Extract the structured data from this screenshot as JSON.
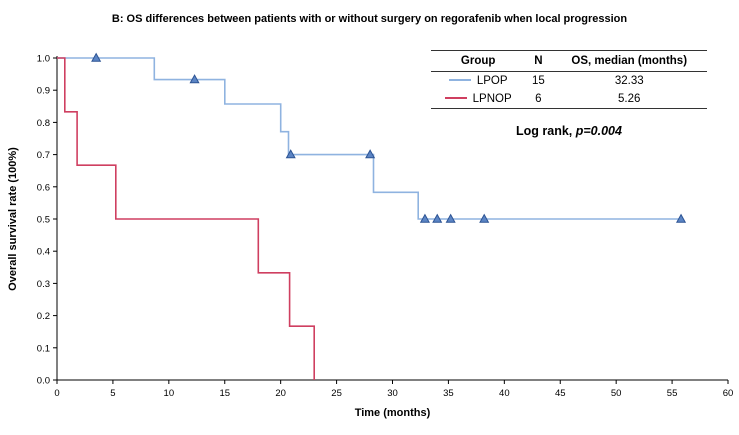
{
  "chart_data": {
    "type": "line",
    "chart_kind": "kaplan-meier-step",
    "title": "B: OS differences between patients with or without surgery on regorafenib when local progression",
    "xlabel": "Time (months)",
    "ylabel": "Overall survival rate (100%)",
    "xlim": [
      0,
      60
    ],
    "ylim": [
      0.0,
      1.0
    ],
    "xticks": [
      0,
      5,
      10,
      15,
      20,
      25,
      30,
      35,
      40,
      45,
      50,
      55,
      60
    ],
    "yticks": [
      0.0,
      0.1,
      0.2,
      0.3,
      0.4,
      0.5,
      0.6,
      0.7,
      0.8,
      0.9,
      1.0
    ],
    "grid": false,
    "legend_position": "top-right",
    "series": [
      {
        "name": "LPOP",
        "n": 15,
        "os_median_months": "32.33",
        "color": "#8fb3e0",
        "censor_fill": "#5b84c4",
        "censor_stroke": "#2d5494",
        "steps": [
          [
            0,
            1.0
          ],
          [
            8.7,
            1.0
          ],
          [
            8.7,
            0.933
          ],
          [
            15,
            0.933
          ],
          [
            15,
            0.857
          ],
          [
            20,
            0.857
          ],
          [
            20,
            0.771
          ],
          [
            20.7,
            0.771
          ],
          [
            20.7,
            0.7
          ],
          [
            28.3,
            0.7
          ],
          [
            28.3,
            0.583
          ],
          [
            32.3,
            0.583
          ],
          [
            32.3,
            0.5
          ],
          [
            55.8,
            0.5
          ]
        ],
        "censors": [
          [
            3.5,
            1.0
          ],
          [
            12.3,
            0.933
          ],
          [
            20.9,
            0.7
          ],
          [
            28.0,
            0.7
          ],
          [
            32.9,
            0.5
          ],
          [
            34.0,
            0.5
          ],
          [
            35.2,
            0.5
          ],
          [
            38.2,
            0.5
          ],
          [
            55.8,
            0.5
          ]
        ]
      },
      {
        "name": "LPNOP",
        "n": 6,
        "os_median_months": "5.26",
        "color": "#cf3f60",
        "censor_fill": "#cf3f60",
        "censor_stroke": "#a32747",
        "steps": [
          [
            0,
            1.0
          ],
          [
            0.7,
            1.0
          ],
          [
            0.7,
            0.833
          ],
          [
            1.8,
            0.833
          ],
          [
            1.8,
            0.667
          ],
          [
            5.26,
            0.667
          ],
          [
            5.26,
            0.5
          ],
          [
            18,
            0.5
          ],
          [
            18,
            0.333
          ],
          [
            20.8,
            0.333
          ],
          [
            20.8,
            0.167
          ],
          [
            23,
            0.167
          ],
          [
            23,
            0.0
          ]
        ],
        "censors": []
      }
    ]
  },
  "legend_table": {
    "headers": [
      "Group",
      "N",
      "OS, median (months)"
    ],
    "rows": [
      {
        "group": "LPOP",
        "n": "15",
        "median": "32.33"
      },
      {
        "group": "LPNOP",
        "n": "6",
        "median": "5.26"
      }
    ],
    "logrank_prefix": "Log rank, ",
    "logrank_value": "p=0.004"
  }
}
